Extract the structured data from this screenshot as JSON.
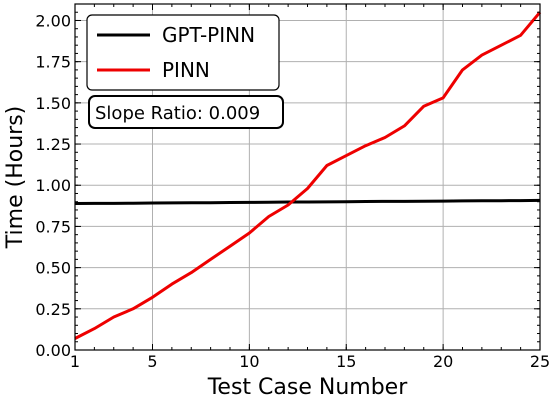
{
  "chart_data": {
    "type": "line",
    "title": "",
    "xlabel": "Test Case Number",
    "ylabel": "Time (Hours)",
    "xlim": [
      1,
      25
    ],
    "ylim": [
      0,
      2.1
    ],
    "x_ticks": [
      1,
      5,
      10,
      15,
      20,
      25
    ],
    "x_tick_labels": [
      "1",
      "5",
      "10",
      "15",
      "20",
      "25"
    ],
    "y_ticks": [
      0,
      0.25,
      0.5,
      0.75,
      1.0,
      1.25,
      1.5,
      1.75,
      2.0
    ],
    "y_tick_labels": [
      "0.00",
      "0.25",
      "0.50",
      "0.75",
      "1.00",
      "1.25",
      "1.50",
      "1.75",
      "2.00"
    ],
    "grid": true,
    "legend_position": "top-left",
    "annotation": "Slope Ratio: 0.009",
    "x": [
      1,
      2,
      3,
      4,
      5,
      6,
      7,
      8,
      9,
      10,
      11,
      12,
      13,
      14,
      15,
      16,
      17,
      18,
      19,
      20,
      21,
      22,
      23,
      24,
      25
    ],
    "series": [
      {
        "name": "GPT-PINN",
        "color": "#000000",
        "values": [
          0.889,
          0.89,
          0.89,
          0.891,
          0.892,
          0.893,
          0.894,
          0.894,
          0.895,
          0.896,
          0.897,
          0.898,
          0.898,
          0.899,
          0.9,
          0.901,
          0.902,
          0.902,
          0.903,
          0.904,
          0.905,
          0.906,
          0.906,
          0.907,
          0.908
        ]
      },
      {
        "name": "PINN",
        "color": "#ee0000",
        "values": [
          0.07,
          0.13,
          0.2,
          0.25,
          0.32,
          0.4,
          0.47,
          0.55,
          0.63,
          0.71,
          0.81,
          0.88,
          0.98,
          1.12,
          1.18,
          1.24,
          1.29,
          1.36,
          1.48,
          1.53,
          1.7,
          1.79,
          1.85,
          1.91,
          2.05
        ]
      }
    ]
  }
}
